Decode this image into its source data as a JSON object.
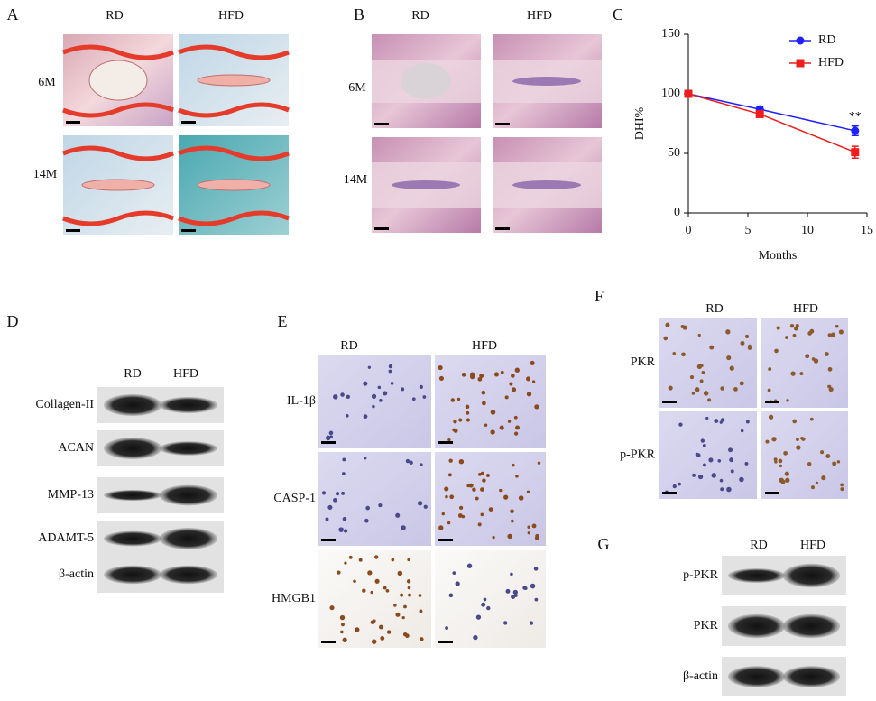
{
  "panel_A": {
    "label": "A",
    "columns": [
      "RD",
      "HFD"
    ],
    "rows": [
      "6M",
      "14M"
    ]
  },
  "panel_B": {
    "label": "B",
    "columns": [
      "RD",
      "HFD"
    ],
    "rows": [
      "6M",
      "14M"
    ]
  },
  "chart_data": {
    "type": "line",
    "panel_label": "C",
    "x_label": "Months",
    "y_label": "DHI%",
    "x": [
      0,
      6,
      14
    ],
    "series": [
      {
        "name": "RD",
        "color": "#1f1fff",
        "marker": "circle",
        "values": [
          100,
          87,
          69
        ],
        "errors": [
          0,
          2,
          4
        ]
      },
      {
        "name": "HFD",
        "color": "#ee1c1c",
        "marker": "square",
        "values": [
          100,
          83,
          51
        ],
        "errors": [
          0,
          2,
          5
        ]
      }
    ],
    "annotation": "**",
    "xlim": [
      0,
      15
    ],
    "xticks": [
      0,
      5,
      10,
      15
    ],
    "ylim": [
      0,
      150
    ],
    "yticks": [
      0,
      50,
      100,
      150
    ],
    "legend": "upper right"
  },
  "panel_D": {
    "label": "D",
    "columns": [
      "RD",
      "HFD"
    ],
    "rows": [
      "Collagen-II",
      "ACAN",
      "MMP-13",
      "ADAMT-5",
      "β-actin"
    ]
  },
  "panel_E": {
    "label": "E",
    "columns": [
      "RD",
      "HFD"
    ],
    "rows": [
      "IL-1β",
      "CASP-1",
      "HMGB1"
    ]
  },
  "panel_F": {
    "label": "F",
    "columns": [
      "RD",
      "HFD"
    ],
    "rows": [
      "PKR",
      "p-PKR"
    ]
  },
  "panel_G": {
    "label": "G",
    "columns": [
      "RD",
      "HFD"
    ],
    "rows": [
      "p-PKR",
      "PKR",
      "β-actin"
    ]
  }
}
